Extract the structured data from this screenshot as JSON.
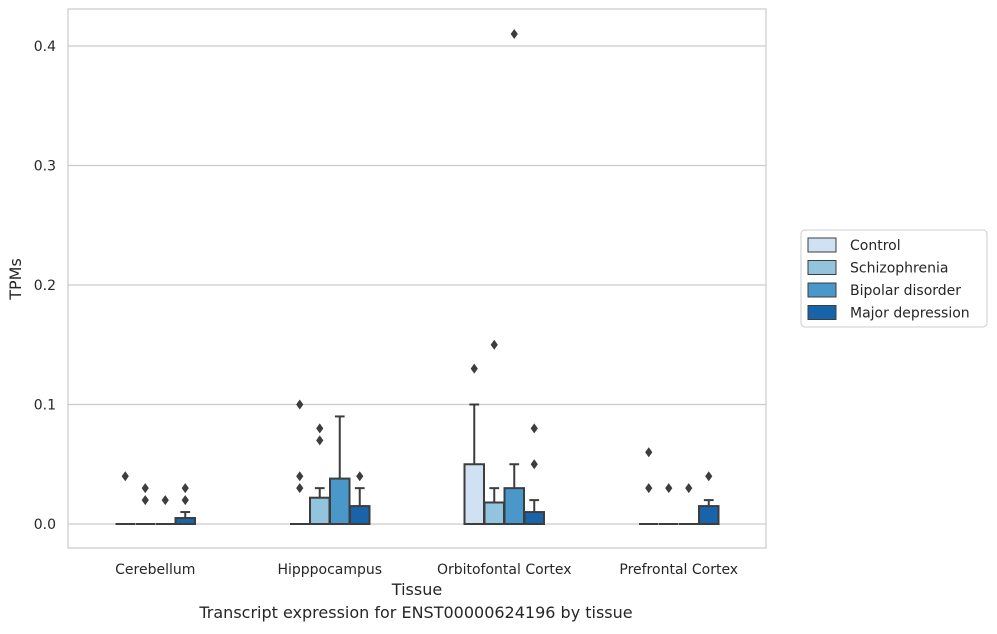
{
  "chart_data": {
    "type": "box",
    "xlabel": "Tissue",
    "ylabel": "TPMs",
    "categories": [
      "Cerebellum",
      "Hipppocampus",
      "Orbitofontal Cortex",
      "Prefrontal Cortex"
    ],
    "ylim": [
      -0.02,
      0.43
    ],
    "yticks": [
      0.0,
      0.1,
      0.2,
      0.3,
      0.4
    ],
    "ytick_labels": [
      "0.0",
      "0.1",
      "0.2",
      "0.3",
      "0.4"
    ],
    "grid": "horizontal",
    "legend_position": "right, outside plot",
    "series": [
      {
        "name": "Control",
        "color": "#cfe1f2",
        "boxes": [
          {
            "q1": 0,
            "median": 0,
            "q3": 0,
            "whisker_low": 0,
            "whisker_high": 0,
            "outliers": [
              0.04
            ]
          },
          {
            "q1": 0,
            "median": 0,
            "q3": 0,
            "whisker_low": 0,
            "whisker_high": 0,
            "outliers": [
              0.03,
              0.04,
              0.1
            ]
          },
          {
            "q1": 0,
            "median": 0,
            "q3": 0.05,
            "whisker_low": 0,
            "whisker_high": 0.1,
            "outliers": [
              0.13
            ]
          },
          {
            "q1": 0,
            "median": 0,
            "q3": 0,
            "whisker_low": 0,
            "whisker_high": 0,
            "outliers": [
              0.03,
              0.06
            ]
          }
        ]
      },
      {
        "name": "Schizophrenia",
        "color": "#93c4de",
        "boxes": [
          {
            "q1": 0,
            "median": 0,
            "q3": 0,
            "whisker_low": 0,
            "whisker_high": 0,
            "outliers": [
              0.02,
              0.03
            ]
          },
          {
            "q1": 0,
            "median": 0,
            "q3": 0.022,
            "whisker_low": 0,
            "whisker_high": 0.03,
            "outliers": [
              0.07,
              0.08
            ]
          },
          {
            "q1": 0,
            "median": 0,
            "q3": 0.018,
            "whisker_low": 0,
            "whisker_high": 0.03,
            "outliers": [
              0.15
            ]
          },
          {
            "q1": 0,
            "median": 0,
            "q3": 0,
            "whisker_low": 0,
            "whisker_high": 0,
            "outliers": [
              0.03
            ]
          }
        ]
      },
      {
        "name": "Bipolar disorder",
        "color": "#4a98c9",
        "boxes": [
          {
            "q1": 0,
            "median": 0,
            "q3": 0,
            "whisker_low": 0,
            "whisker_high": 0,
            "outliers": [
              0.02
            ]
          },
          {
            "q1": 0,
            "median": 0,
            "q3": 0.038,
            "whisker_low": 0,
            "whisker_high": 0.09,
            "outliers": []
          },
          {
            "q1": 0,
            "median": 0,
            "q3": 0.03,
            "whisker_low": 0,
            "whisker_high": 0.05,
            "outliers": [
              0.41
            ]
          },
          {
            "q1": 0,
            "median": 0,
            "q3": 0,
            "whisker_low": 0,
            "whisker_high": 0,
            "outliers": [
              0.03
            ]
          }
        ]
      },
      {
        "name": "Major depression",
        "color": "#1764ab",
        "boxes": [
          {
            "q1": 0,
            "median": 0,
            "q3": 0.005,
            "whisker_low": 0,
            "whisker_high": 0.01,
            "outliers": [
              0.02,
              0.03
            ]
          },
          {
            "q1": 0,
            "median": 0,
            "q3": 0.015,
            "whisker_low": 0,
            "whisker_high": 0.03,
            "outliers": [
              0.04
            ]
          },
          {
            "q1": 0,
            "median": 0,
            "q3": 0.01,
            "whisker_low": 0,
            "whisker_high": 0.02,
            "outliers": [
              0.05,
              0.08
            ]
          },
          {
            "q1": 0,
            "median": 0,
            "q3": 0.015,
            "whisker_low": 0,
            "whisker_high": 0.02,
            "outliers": [
              0.04
            ]
          }
        ]
      }
    ]
  },
  "caption": "Transcript expression for ENST00000624196 by tissue"
}
